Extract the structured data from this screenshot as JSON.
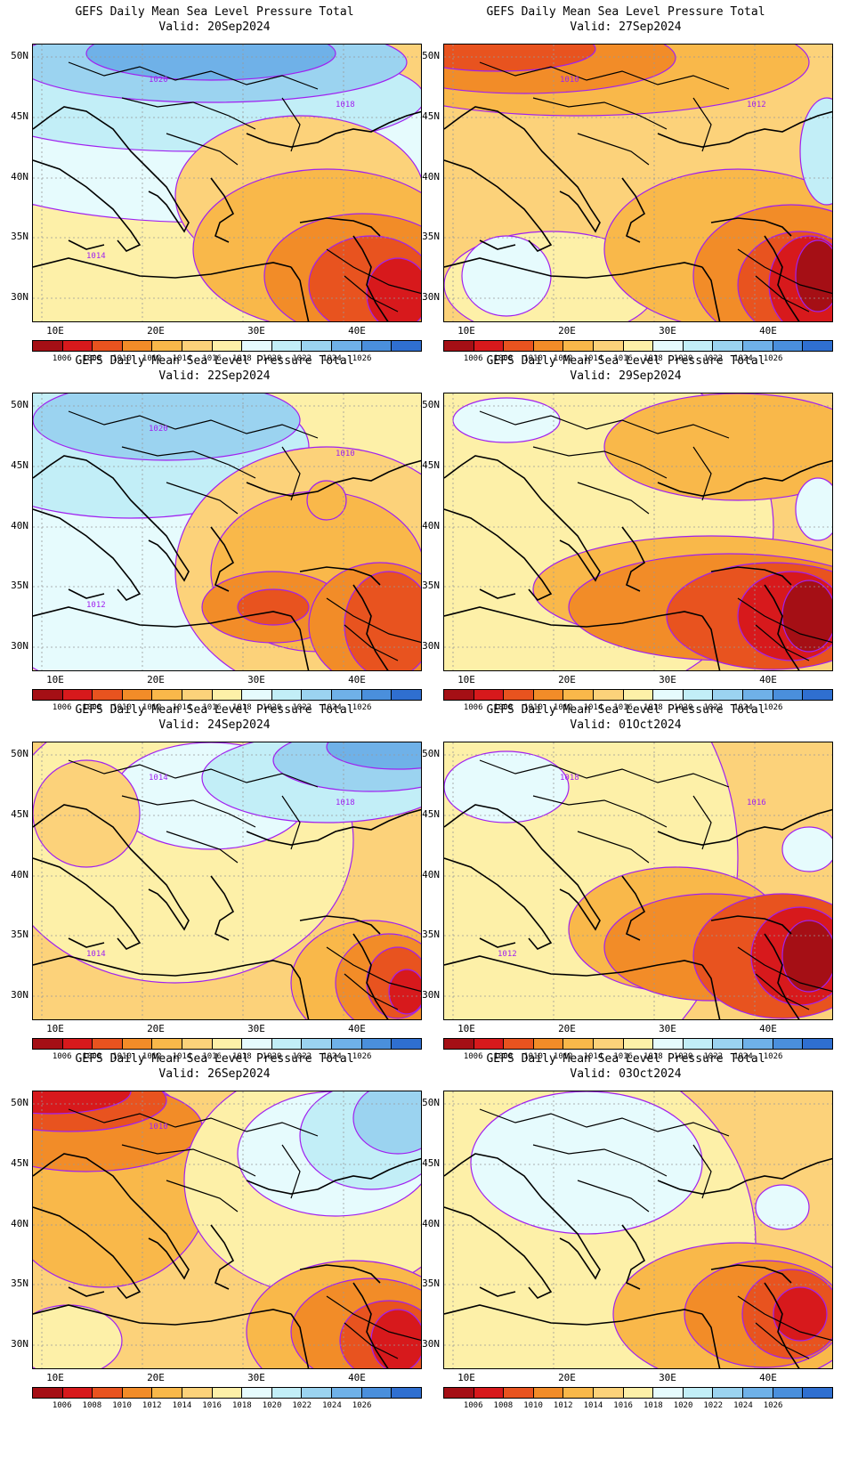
{
  "panels": [
    {
      "title": "GEFS Daily Mean Sea Level Pressure Total",
      "valid": "Valid: 20Sep2024",
      "contours": [
        "1020",
        "1018",
        "1014"
      ]
    },
    {
      "title": "GEFS Daily Mean Sea Level Pressure Total",
      "valid": "Valid: 27Sep2024",
      "contours": [
        "1010",
        "1012"
      ]
    },
    {
      "title": "GEFS Daily Mean Sea Level Pressure Total",
      "valid": "Valid: 22Sep2024",
      "contours": [
        "1020",
        "1010",
        "1012"
      ]
    },
    {
      "title": "GEFS Daily Mean Sea Level Pressure Total",
      "valid": "Valid: 29Sep2024",
      "contours": []
    },
    {
      "title": "GEFS Daily Mean Sea Level Pressure Total",
      "valid": "Valid: 24Sep2024",
      "contours": [
        "1014",
        "1018",
        "1014"
      ]
    },
    {
      "title": "GEFS Daily Mean Sea Level Pressure Total",
      "valid": "Valid: 01Oct2024",
      "contours": [
        "1018",
        "1016",
        "1012"
      ]
    },
    {
      "title": "GEFS Daily Mean Sea Level Pressure Total",
      "valid": "Valid: 26Sep2024",
      "contours": [
        "1010"
      ]
    },
    {
      "title": "GEFS Daily Mean Sea Level Pressure Total",
      "valid": "Valid: 03Oct2024",
      "contours": []
    }
  ],
  "axes": {
    "lat_labels": [
      "50N",
      "45N",
      "40N",
      "35N",
      "30N"
    ],
    "lon_labels": [
      "10E",
      "20E",
      "30E",
      "40E"
    ]
  },
  "colorbar": {
    "labels": [
      "1006",
      "1008",
      "1010",
      "1012",
      "1014",
      "1016",
      "1018",
      "1020",
      "1022",
      "1024",
      "1026"
    ],
    "colors": [
      "#a50f15",
      "#d7191c",
      "#e8531f",
      "#f28c28",
      "#f9b84a",
      "#fcd27a",
      "#fdf0a8",
      "#e6fbfd",
      "#c2eef7",
      "#9bd3f0",
      "#6fb1e8",
      "#4a8fdc",
      "#2f6fd0"
    ]
  },
  "colors": {
    "contour": "#a020f0",
    "coast": "#000000",
    "grid": "#999999"
  }
}
